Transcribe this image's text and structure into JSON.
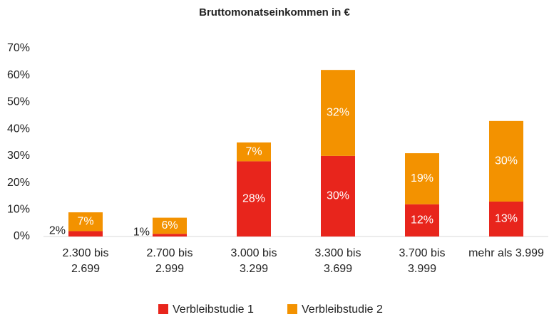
{
  "chart_data": {
    "type": "stacked_bar",
    "title": "Bruttomonatseinkommen in €",
    "categories": [
      [
        "2.300 bis",
        "2.699"
      ],
      [
        "2.700 bis",
        "2.999"
      ],
      [
        "3.000 bis",
        "3.299"
      ],
      [
        "3.300 bis",
        "3.699"
      ],
      [
        "3.700 bis",
        "3.999"
      ],
      [
        "mehr als 3.999"
      ]
    ],
    "series": [
      {
        "name": "Verbleibstudie 1",
        "color": "#e8251c",
        "values": [
          2,
          1,
          28,
          30,
          12,
          13
        ],
        "value_labels": [
          "2%",
          "1%",
          "28%",
          "30%",
          "12%",
          "13%"
        ]
      },
      {
        "name": "Verbleibstudie 2",
        "color": "#f39200",
        "values": [
          7,
          6,
          7,
          32,
          19,
          30
        ],
        "value_labels": [
          "7%",
          "6%",
          "7%",
          "32%",
          "19%",
          "30%"
        ]
      }
    ],
    "ylim": [
      0,
      70
    ],
    "yticks": [
      {
        "value": 0,
        "label": "0%"
      },
      {
        "value": 10,
        "label": "10%"
      },
      {
        "value": 20,
        "label": "20%"
      },
      {
        "value": 30,
        "label": "30%"
      },
      {
        "value": 40,
        "label": "40%"
      },
      {
        "value": 50,
        "label": "50%"
      },
      {
        "value": 60,
        "label": "60%"
      },
      {
        "value": 70,
        "label": "70%"
      }
    ],
    "grid": false,
    "legend": "bottom"
  }
}
